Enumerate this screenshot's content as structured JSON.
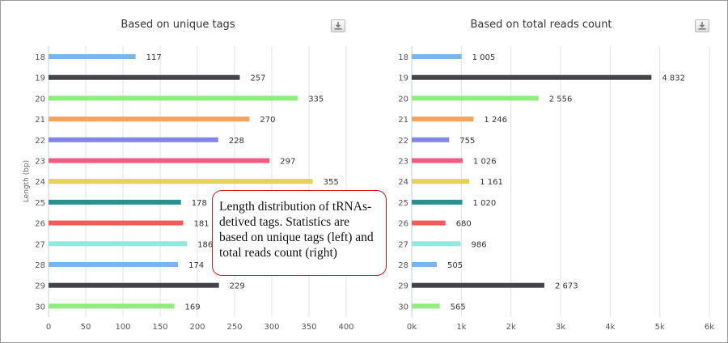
{
  "chart_data": [
    {
      "type": "bar",
      "orientation": "horizontal",
      "title": "Based on unique tags",
      "xlabel": "",
      "ylabel": "Length (bp)",
      "categories": [
        "18",
        "19",
        "20",
        "21",
        "22",
        "23",
        "24",
        "25",
        "26",
        "27",
        "28",
        "29",
        "30"
      ],
      "values": [
        117,
        257,
        335,
        270,
        228,
        297,
        355,
        178,
        181,
        186,
        174,
        229,
        169
      ],
      "value_labels": [
        "117",
        "257",
        "335",
        "270",
        "228",
        "297",
        "355",
        "178",
        "181",
        "186",
        "174",
        "229",
        "169"
      ],
      "colors": [
        "#7cb5ec",
        "#434348",
        "#90ed7d",
        "#f7a35c",
        "#8085e9",
        "#f15c80",
        "#e4d354",
        "#2b908f",
        "#f45b5b",
        "#91e8e1",
        "#7cb5ec",
        "#434348",
        "#90ed7d"
      ],
      "xlim": [
        0,
        400
      ],
      "xticks": [
        0,
        50,
        100,
        150,
        200,
        250,
        300,
        350,
        400
      ],
      "xtick_labels": [
        "0",
        "50",
        "100",
        "150",
        "200",
        "250",
        "300",
        "350",
        "400"
      ],
      "grid": "vertical"
    },
    {
      "type": "bar",
      "orientation": "horizontal",
      "title": "Based on total reads count",
      "xlabel": "",
      "ylabel": "",
      "categories": [
        "18",
        "19",
        "20",
        "21",
        "22",
        "23",
        "24",
        "25",
        "26",
        "27",
        "28",
        "29",
        "30"
      ],
      "values": [
        1005,
        4832,
        2556,
        1246,
        755,
        1026,
        1161,
        1020,
        680,
        986,
        505,
        2673,
        565
      ],
      "value_labels": [
        "1 005",
        "4 832",
        "2 556",
        "1 246",
        "755",
        "1 026",
        "1 161",
        "1 020",
        "680",
        "986",
        "505",
        "2 673",
        "565"
      ],
      "colors": [
        "#7cb5ec",
        "#434348",
        "#90ed7d",
        "#f7a35c",
        "#8085e9",
        "#f15c80",
        "#e4d354",
        "#2b908f",
        "#f45b5b",
        "#91e8e1",
        "#7cb5ec",
        "#434348",
        "#90ed7d"
      ],
      "xlim": [
        0,
        6000
      ],
      "xticks": [
        0,
        1000,
        2000,
        3000,
        4000,
        5000,
        6000
      ],
      "xtick_labels": [
        "0k",
        "1k",
        "2k",
        "3k",
        "4k",
        "5k",
        "6k"
      ],
      "grid": "vertical"
    }
  ],
  "annotation": {
    "text": "Length distribution of tRNAs-detived tags. Statistics are based on unique tags (left) and total reads count (right)"
  },
  "icons": {
    "download_left": "download-icon",
    "download_right": "download-icon"
  }
}
